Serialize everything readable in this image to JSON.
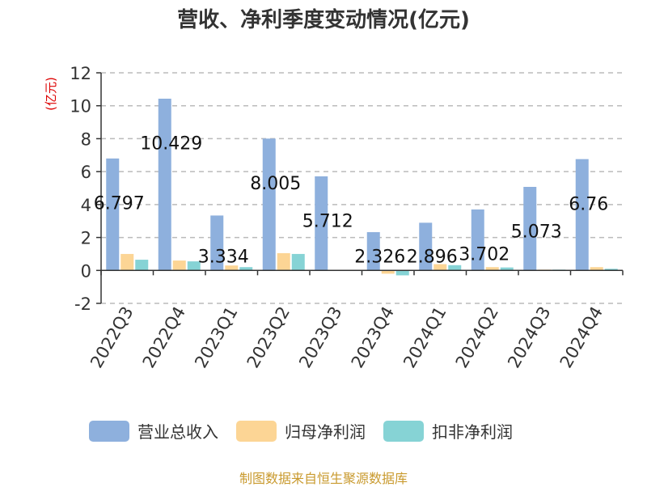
{
  "title": "营收、净利季度变动情况(亿元)",
  "source_text": "制图数据来自恒生聚源数据库",
  "colors": {
    "revenue": "#8eb0dd",
    "net_profit_parent": "#fcd595",
    "net_profit_deducted": "#86d3d5",
    "y_unit": "#dd0000"
  },
  "chart_data": {
    "type": "bar",
    "title": "营收、净利季度变动情况(亿元)",
    "ylabel": "(亿元)",
    "xlabel": "",
    "ylim": [
      -2,
      12
    ],
    "yticks": [
      -2,
      0,
      2,
      4,
      6,
      8,
      10,
      12
    ],
    "grid": true,
    "legend_position": "bottom",
    "categories": [
      "2022Q3",
      "2022Q4",
      "2023Q1",
      "2023Q2",
      "2023Q3",
      "2023Q4",
      "2024Q1",
      "2024Q2",
      "2024Q3",
      "2024Q4"
    ],
    "series": [
      {
        "name": "营业总收入",
        "values": [
          6.797,
          10.429,
          3.334,
          8.005,
          5.712,
          2.326,
          2.896,
          3.702,
          5.073,
          6.76
        ]
      },
      {
        "name": "归母净利润",
        "values": [
          1.0,
          0.6,
          0.3,
          1.05,
          0.02,
          -0.2,
          0.38,
          0.2,
          0.05,
          0.2
        ]
      },
      {
        "name": "扣非净利润",
        "values": [
          0.65,
          0.55,
          0.2,
          1.0,
          0.02,
          -0.3,
          0.32,
          0.18,
          0.05,
          0.1
        ]
      }
    ],
    "data_labels": [
      "6.797",
      "10.429",
      "3.334",
      "8.005",
      "5.712",
      "2.326",
      "2.896",
      "3.702",
      "5.073",
      "6.76"
    ]
  }
}
